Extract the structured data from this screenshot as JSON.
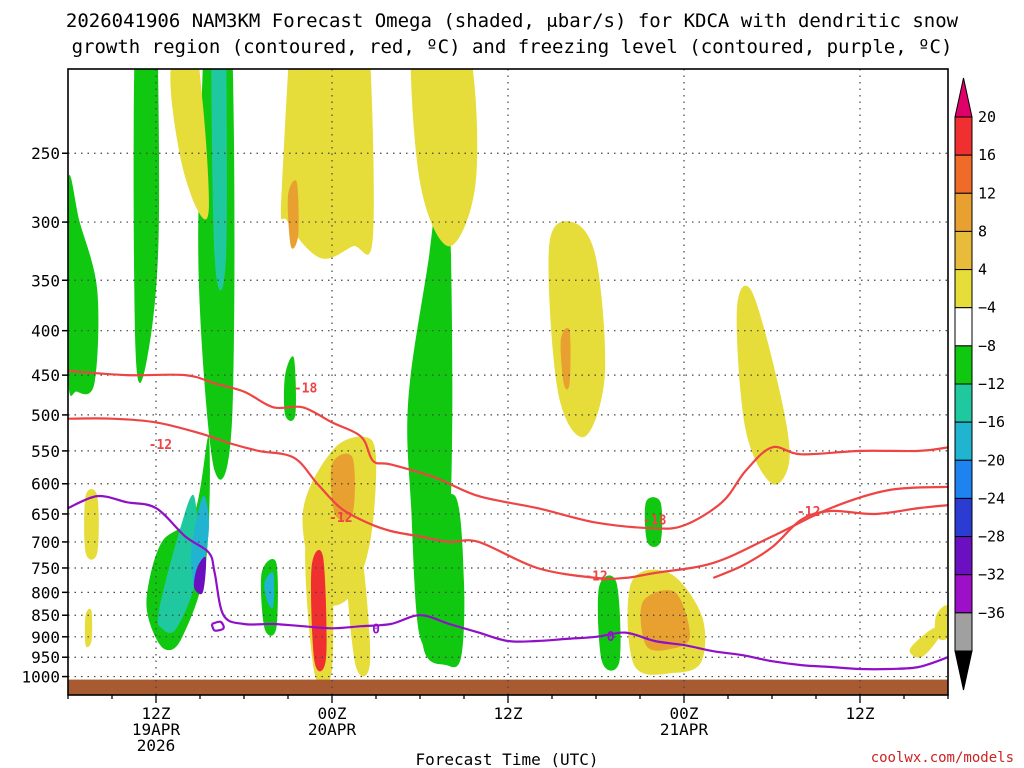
{
  "chart_data": {
    "type": "heatmap",
    "title_line1": "2026041906 NAM3KM Forecast Omega (shaded, μbar/s) for KDCA with dendritic snow",
    "title_line2": "growth region (contoured, red, ºC) and freezing level (contoured, purple, ºC)",
    "xlabel": "Forecast Time (UTC)",
    "x_unit": "hours since 2026041906",
    "xlim": [
      0,
      60
    ],
    "y_unit": "hPa",
    "ylim": [
      1050,
      200
    ],
    "y_ticks": [
      "250",
      "300",
      "350",
      "400",
      "450",
      "500",
      "550",
      "600",
      "650",
      "700",
      "750",
      "800",
      "850",
      "900",
      "950",
      "1000"
    ],
    "x_ticks": [
      {
        "h": 6,
        "l1": "12Z",
        "l2": "19APR",
        "l3": "2026"
      },
      {
        "h": 18,
        "l1": "00Z",
        "l2": "20APR",
        "l3": ""
      },
      {
        "h": 30,
        "l1": "12Z",
        "l2": "",
        "l3": ""
      },
      {
        "h": 42,
        "l1": "00Z",
        "l2": "21APR",
        "l3": ""
      },
      {
        "h": 54,
        "l1": "12Z",
        "l2": "",
        "l3": ""
      }
    ],
    "colorbar": {
      "labels": [
        "20",
        "16",
        "12",
        "8",
        "4",
        "−4",
        "−8",
        "−12",
        "−16",
        "−20",
        "−24",
        "−28",
        "−32",
        "−36"
      ],
      "top_triangle": "#e0006a",
      "bottom_triangle": "#000000",
      "colors": [
        "#f03030",
        "#f06a2a",
        "#e8a030",
        "#e8bc3a",
        "#e6dc3a",
        "#ffffff",
        "#10c810",
        "#20c8a0",
        "#20b4d0",
        "#1e82f0",
        "#2a3cd2",
        "#6a10c0",
        "#9c10c8",
        "#a0a0a0"
      ]
    },
    "omega_regions": [
      {
        "level": -6,
        "t": [
          0.0,
          0.8,
          2.0,
          1.8,
          0.6,
          0.0
        ],
        "p": [
          270,
          300,
          360,
          460,
          470,
          450
        ]
      },
      {
        "level": -6,
        "t": [
          4.6,
          5.8,
          6.2,
          5.4,
          4.6
        ],
        "p": [
          175,
          135,
          300,
          430,
          420
        ]
      },
      {
        "level": -6,
        "t": [
          9.0,
          10.0,
          11.2,
          11.2,
          10.0,
          9.0
        ],
        "p": [
          250,
          110,
          190,
          500,
          580,
          380
        ]
      },
      {
        "level": -10,
        "t": [
          9.8,
          10.6,
          10.8,
          10.0
        ],
        "p": [
          160,
          130,
          320,
          330
        ]
      },
      {
        "level": -6,
        "t": [
          5.4,
          6.4,
          8.6,
          9.6,
          9.4,
          7.8,
          6.6,
          5.6
        ],
        "p": [
          800,
          700,
          650,
          530,
          740,
          900,
          930,
          870
        ]
      },
      {
        "level": -10,
        "t": [
          6.2,
          7.6,
          8.6,
          8.8,
          7.4,
          6.4
        ],
        "p": [
          840,
          680,
          620,
          760,
          880,
          880
        ]
      },
      {
        "level": -16,
        "t": [
          8.4,
          9.2,
          9.6,
          8.8
        ],
        "p": [
          720,
          620,
          680,
          800
        ]
      },
      {
        "level": -28,
        "t": [
          8.8,
          9.4,
          9.2,
          8.6
        ],
        "p": [
          750,
          730,
          800,
          790
        ]
      },
      {
        "level": -6,
        "t": [
          13.2,
          14.2,
          14.2,
          13.4
        ],
        "p": [
          760,
          740,
          880,
          880
        ]
      },
      {
        "level": -16,
        "t": [
          13.4,
          14.0,
          14.0,
          13.6
        ],
        "p": [
          780,
          760,
          830,
          820
        ]
      },
      {
        "level": -6,
        "t": [
          14.8,
          15.4,
          15.5,
          14.8
        ],
        "p": [
          450,
          430,
          500,
          500
        ]
      },
      {
        "level": -6,
        "t": [
          23.2,
          24.6,
          25.8,
          26.2,
          25.6,
          24.0,
          23.4
        ],
        "p": [
          480,
          330,
          240,
          500,
          880,
          900,
          640
        ]
      },
      {
        "level": -6,
        "t": [
          24.4,
          26.4,
          27.0,
          26.8,
          25.8,
          24.2
        ],
        "p": [
          680,
          620,
          780,
          950,
          970,
          920
        ]
      },
      {
        "level": -6,
        "t": [
          36.2,
          37.4,
          37.6,
          36.4
        ],
        "p": [
          790,
          780,
          960,
          960
        ]
      },
      {
        "level": -6,
        "t": [
          39.4,
          40.4,
          40.4,
          39.5
        ],
        "p": [
          630,
          630,
          700,
          700
        ]
      },
      {
        "level": 6,
        "t": [
          7.0,
          8.4,
          9.2,
          9.6,
          8.8,
          7.6
        ],
        "p": [
          200,
          180,
          220,
          290,
          290,
          250
        ]
      },
      {
        "level": 6,
        "t": [
          14.6,
          16.2,
          19.0,
          20.4,
          20.8,
          19.4,
          17.2,
          15.0
        ],
        "p": [
          270,
          120,
          130,
          170,
          310,
          320,
          330,
          300
        ]
      },
      {
        "level": 10,
        "t": [
          15.0,
          15.6,
          15.7,
          15.2
        ],
        "p": [
          280,
          270,
          310,
          320
        ]
      },
      {
        "level": 6,
        "t": [
          23.4,
          25.0,
          27.4,
          27.8,
          26.0,
          24.0
        ],
        "p": [
          180,
          150,
          190,
          270,
          320,
          270
        ]
      },
      {
        "level": 6,
        "t": [
          32.8,
          34.4,
          36.0,
          36.6,
          35.2,
          33.4
        ],
        "p": [
          320,
          300,
          330,
          450,
          530,
          470
        ]
      },
      {
        "level": 10,
        "t": [
          33.6,
          34.2,
          34.2,
          33.8
        ],
        "p": [
          410,
          400,
          460,
          460
        ]
      },
      {
        "level": 6,
        "t": [
          16.0,
          18.0,
          20.2,
          21.0,
          20.6,
          19.2,
          17.2
        ],
        "p": [
          650,
          550,
          530,
          560,
          700,
          810,
          810
        ]
      },
      {
        "level": 10,
        "t": [
          18.0,
          19.4,
          19.4,
          18.2
        ],
        "p": [
          570,
          560,
          650,
          650
        ]
      },
      {
        "level": 6,
        "t": [
          16.2,
          17.8,
          18.0,
          16.8
        ],
        "p": [
          700,
          680,
          980,
          990
        ]
      },
      {
        "level": 16,
        "t": [
          16.6,
          17.4,
          17.6,
          16.8
        ],
        "p": [
          750,
          730,
          950,
          960
        ]
      },
      {
        "level": 6,
        "t": [
          19.0,
          20.0,
          20.6,
          19.6
        ],
        "p": [
          740,
          720,
          960,
          970
        ]
      },
      {
        "level": 6,
        "t": [
          38.4,
          41.0,
          43.2,
          43.2,
          41.4,
          38.6
        ],
        "p": [
          780,
          760,
          850,
          960,
          990,
          970
        ]
      },
      {
        "level": 10,
        "t": [
          39.2,
          41.4,
          42.4,
          41.0,
          39.4
        ],
        "p": [
          820,
          800,
          900,
          930,
          920
        ]
      },
      {
        "level": 6,
        "t": [
          1.2,
          2.0,
          2.0,
          1.2
        ],
        "p": [
          620,
          620,
          720,
          720
        ]
      },
      {
        "level": 6,
        "t": [
          1.2,
          1.6,
          1.6,
          1.2
        ],
        "p": [
          850,
          840,
          910,
          920
        ]
      },
      {
        "level": 6,
        "t": [
          45.6,
          46.6,
          48.4,
          49.2,
          48.0,
          46.2
        ],
        "p": [
          380,
          360,
          460,
          560,
          600,
          520
        ]
      },
      {
        "level": 6,
        "t": [
          57.4,
          59.0,
          59.4,
          58.2
        ],
        "p": [
          930,
          880,
          900,
          950
        ]
      },
      {
        "level": 6,
        "t": [
          59.2,
          60.0,
          60.0,
          59.2
        ],
        "p": [
          850,
          830,
          900,
          900
        ]
      }
    ],
    "contours": [
      {
        "name": "dgz-minus-12-upper",
        "color": "#ee4444",
        "label": "-12",
        "label_at": [
          6.3,
          510
        ],
        "t": [
          0,
          3,
          6,
          9,
          11.2,
          13,
          15.4,
          17,
          18.6,
          20.4,
          22,
          24,
          26,
          28,
          32,
          36,
          38,
          40,
          44,
          48,
          52,
          56,
          60
        ],
        "p": [
          505,
          505,
          510,
          525,
          540,
          550,
          560,
          600,
          640,
          665,
          680,
          690,
          700,
          700,
          750,
          770,
          770,
          760,
          740,
          690,
          640,
          610,
          605
        ]
      },
      {
        "name": "dgz-minus-18",
        "color": "#ee4444",
        "label": "-18",
        "label_at": [
          16.2,
          480
        ],
        "t": [
          0,
          4,
          8,
          10,
          12,
          14,
          16,
          18,
          20,
          20.8,
          22,
          25,
          28,
          32,
          36,
          39.8,
          42,
          44.6,
          46.2,
          48,
          50,
          54,
          58,
          60
        ],
        "p": [
          445,
          450,
          450,
          460,
          470,
          490,
          490,
          510,
          530,
          565,
          570,
          590,
          620,
          640,
          665,
          675,
          670,
          630,
          580,
          545,
          555,
          550,
          550,
          545
        ]
      },
      {
        "name": "dgz-minus-12-lower",
        "color": "#ee4444",
        "label": "-12",
        "label_at": [
          18.6,
          680
        ],
        "t": [
          44,
          46,
          48,
          50,
          52,
          55,
          58,
          60
        ],
        "p": [
          770,
          745,
          710,
          660,
          645,
          650,
          640,
          635
        ]
      },
      {
        "name": "freezing-level-zero",
        "color": "#9010c8",
        "label": "0",
        "label_at": [
          21.4,
          870
        ],
        "t": [
          0,
          2,
          4,
          6,
          8,
          9.6,
          10,
          10.6,
          12,
          14,
          16,
          18,
          20,
          22,
          24,
          26,
          28,
          30,
          32,
          34,
          36,
          38,
          40,
          42,
          44,
          46,
          48,
          50,
          52,
          54,
          56,
          58,
          60
        ],
        "p": [
          640,
          620,
          630,
          640,
          690,
          720,
          760,
          850,
          870,
          870,
          875,
          880,
          875,
          870,
          850,
          870,
          890,
          910,
          910,
          905,
          900,
          890,
          910,
          920,
          935,
          945,
          960,
          970,
          975,
          980,
          980,
          975,
          950
        ]
      },
      {
        "name": "freezing-level-loop",
        "color": "#9010c8",
        "label": "",
        "label_at": null,
        "t": [
          9.8,
          10.4,
          10.6,
          10.0,
          9.8
        ],
        "p": [
          870,
          865,
          880,
          885,
          870
        ]
      }
    ],
    "extra_labels": [
      {
        "text": "-12",
        "t": 6.3,
        "p": 540,
        "color": "#ee4444"
      },
      {
        "text": "-18",
        "t": 16.2,
        "p": 465,
        "color": "#ee4444"
      },
      {
        "text": "-12",
        "t": 18.6,
        "p": 655,
        "color": "#ee4444"
      },
      {
        "text": "-18",
        "t": 40.0,
        "p": 660,
        "color": "#ee4444"
      },
      {
        "text": "-12",
        "t": 36.0,
        "p": 765,
        "color": "#ee4444"
      },
      {
        "text": "-12",
        "t": 50.5,
        "p": 645,
        "color": "#ee4444"
      },
      {
        "text": "0",
        "t": 21.0,
        "p": 880,
        "color": "#9010c8"
      },
      {
        "text": "0",
        "t": 37.0,
        "p": 898,
        "color": "#9010c8"
      }
    ],
    "ground_color": "#a85a30",
    "credit": "coolwx.com/models"
  }
}
